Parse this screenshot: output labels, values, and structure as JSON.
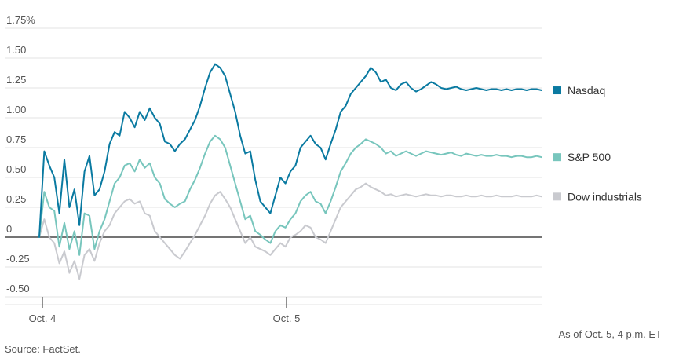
{
  "chart_data": {
    "type": "line",
    "title": "",
    "xlabel": "",
    "ylabel": "",
    "ylim": [
      -0.55,
      1.8
    ],
    "y_ticks": [
      {
        "value": 1.75,
        "label": "1.75%"
      },
      {
        "value": 1.5,
        "label": "1.50"
      },
      {
        "value": 1.25,
        "label": "1.25"
      },
      {
        "value": 1.0,
        "label": "1.00"
      },
      {
        "value": 0.75,
        "label": "0.75"
      },
      {
        "value": 0.5,
        "label": "0.50"
      },
      {
        "value": 0.25,
        "label": "0.25"
      },
      {
        "value": 0,
        "label": "0"
      },
      {
        "value": -0.25,
        "label": "-0.25"
      },
      {
        "value": -0.5,
        "label": "-0.50"
      }
    ],
    "x_ticks": [
      {
        "value": 0,
        "label": "Oct. 4"
      },
      {
        "value": 1,
        "label": "Oct. 5"
      }
    ],
    "xlim": [
      0,
      2
    ],
    "grid": true,
    "legend_position": "right",
    "series": [
      {
        "name": "Nasdaq",
        "color": "#0a7aa1",
        "x": [
          0,
          0.02,
          0.04,
          0.06,
          0.08,
          0.1,
          0.12,
          0.14,
          0.16,
          0.18,
          0.2,
          0.22,
          0.24,
          0.26,
          0.28,
          0.3,
          0.32,
          0.34,
          0.36,
          0.38,
          0.4,
          0.42,
          0.44,
          0.46,
          0.48,
          0.5,
          0.52,
          0.54,
          0.56,
          0.58,
          0.6,
          0.62,
          0.64,
          0.66,
          0.68,
          0.7,
          0.72,
          0.74,
          0.76,
          0.78,
          0.8,
          0.82,
          0.84,
          0.86,
          0.88,
          0.9,
          0.92,
          0.94,
          0.96,
          0.98,
          1.0,
          1.02,
          1.04,
          1.06,
          1.08,
          1.1,
          1.12,
          1.14,
          1.16,
          1.18,
          1.2,
          1.22,
          1.24,
          1.26,
          1.28,
          1.3,
          1.32,
          1.34,
          1.36,
          1.38,
          1.4,
          1.42,
          1.44,
          1.46,
          1.48,
          1.5,
          1.52,
          1.54,
          1.56,
          1.58,
          1.6,
          1.62,
          1.64,
          1.66,
          1.68,
          1.7,
          1.72,
          1.74,
          1.76,
          1.78,
          1.8,
          1.82,
          1.84,
          1.86,
          1.88,
          1.9,
          1.92,
          1.94,
          1.96,
          1.98,
          2.0
        ],
        "values": [
          0.0,
          0.72,
          0.6,
          0.5,
          0.2,
          0.65,
          0.25,
          0.4,
          0.1,
          0.55,
          0.68,
          0.35,
          0.4,
          0.55,
          0.78,
          0.88,
          0.85,
          1.05,
          1.0,
          0.92,
          1.05,
          0.98,
          1.08,
          1.0,
          0.95,
          0.8,
          0.78,
          0.72,
          0.78,
          0.82,
          0.9,
          0.98,
          1.1,
          1.25,
          1.38,
          1.45,
          1.42,
          1.35,
          1.2,
          1.05,
          0.85,
          0.7,
          0.72,
          0.48,
          0.3,
          0.25,
          0.2,
          0.35,
          0.5,
          0.45,
          0.55,
          0.6,
          0.75,
          0.8,
          0.85,
          0.78,
          0.75,
          0.65,
          0.78,
          0.9,
          1.05,
          1.1,
          1.2,
          1.25,
          1.3,
          1.35,
          1.42,
          1.38,
          1.3,
          1.32,
          1.25,
          1.23,
          1.28,
          1.3,
          1.25,
          1.22,
          1.24,
          1.27,
          1.3,
          1.28,
          1.25,
          1.24,
          1.25,
          1.26,
          1.24,
          1.23,
          1.24,
          1.25,
          1.24,
          1.23,
          1.24,
          1.24,
          1.23,
          1.24,
          1.23,
          1.24,
          1.24,
          1.23,
          1.24,
          1.24,
          1.23
        ]
      },
      {
        "name": "S&P 500",
        "color": "#78c6bd",
        "x": [
          0,
          0.02,
          0.04,
          0.06,
          0.08,
          0.1,
          0.12,
          0.14,
          0.16,
          0.18,
          0.2,
          0.22,
          0.24,
          0.26,
          0.28,
          0.3,
          0.32,
          0.34,
          0.36,
          0.38,
          0.4,
          0.42,
          0.44,
          0.46,
          0.48,
          0.5,
          0.52,
          0.54,
          0.56,
          0.58,
          0.6,
          0.62,
          0.64,
          0.66,
          0.68,
          0.7,
          0.72,
          0.74,
          0.76,
          0.78,
          0.8,
          0.82,
          0.84,
          0.86,
          0.88,
          0.9,
          0.92,
          0.94,
          0.96,
          0.98,
          1.0,
          1.02,
          1.04,
          1.06,
          1.08,
          1.1,
          1.12,
          1.14,
          1.16,
          1.18,
          1.2,
          1.22,
          1.24,
          1.26,
          1.28,
          1.3,
          1.32,
          1.34,
          1.36,
          1.38,
          1.4,
          1.42,
          1.44,
          1.46,
          1.48,
          1.5,
          1.52,
          1.54,
          1.56,
          1.58,
          1.6,
          1.62,
          1.64,
          1.66,
          1.68,
          1.7,
          1.72,
          1.74,
          1.76,
          1.78,
          1.8,
          1.82,
          1.84,
          1.86,
          1.88,
          1.9,
          1.92,
          1.94,
          1.96,
          1.98,
          2.0
        ],
        "values": [
          0.0,
          0.38,
          0.25,
          0.22,
          -0.08,
          0.12,
          -0.1,
          0.05,
          -0.15,
          0.2,
          0.18,
          -0.1,
          0.05,
          0.15,
          0.3,
          0.45,
          0.5,
          0.6,
          0.62,
          0.55,
          0.65,
          0.58,
          0.62,
          0.5,
          0.45,
          0.32,
          0.28,
          0.25,
          0.28,
          0.3,
          0.4,
          0.48,
          0.58,
          0.7,
          0.8,
          0.85,
          0.82,
          0.75,
          0.6,
          0.45,
          0.3,
          0.15,
          0.18,
          0.05,
          0.02,
          -0.02,
          -0.05,
          0.05,
          0.1,
          0.08,
          0.15,
          0.2,
          0.3,
          0.35,
          0.38,
          0.3,
          0.28,
          0.2,
          0.3,
          0.42,
          0.55,
          0.62,
          0.7,
          0.75,
          0.78,
          0.82,
          0.8,
          0.78,
          0.75,
          0.7,
          0.72,
          0.68,
          0.7,
          0.72,
          0.7,
          0.68,
          0.7,
          0.72,
          0.71,
          0.7,
          0.69,
          0.7,
          0.71,
          0.69,
          0.68,
          0.7,
          0.69,
          0.68,
          0.69,
          0.68,
          0.68,
          0.69,
          0.68,
          0.68,
          0.67,
          0.68,
          0.68,
          0.67,
          0.67,
          0.68,
          0.67
        ]
      },
      {
        "name": "Dow industrials",
        "color": "#c9cacf",
        "x": [
          0,
          0.02,
          0.04,
          0.06,
          0.08,
          0.1,
          0.12,
          0.14,
          0.16,
          0.18,
          0.2,
          0.22,
          0.24,
          0.26,
          0.28,
          0.3,
          0.32,
          0.34,
          0.36,
          0.38,
          0.4,
          0.42,
          0.44,
          0.46,
          0.48,
          0.5,
          0.52,
          0.54,
          0.56,
          0.58,
          0.6,
          0.62,
          0.64,
          0.66,
          0.68,
          0.7,
          0.72,
          0.74,
          0.76,
          0.78,
          0.8,
          0.82,
          0.84,
          0.86,
          0.88,
          0.9,
          0.92,
          0.94,
          0.96,
          0.98,
          1.0,
          1.02,
          1.04,
          1.06,
          1.08,
          1.1,
          1.12,
          1.14,
          1.16,
          1.18,
          1.2,
          1.22,
          1.24,
          1.26,
          1.28,
          1.3,
          1.32,
          1.34,
          1.36,
          1.38,
          1.4,
          1.42,
          1.44,
          1.46,
          1.48,
          1.5,
          1.52,
          1.54,
          1.56,
          1.58,
          1.6,
          1.62,
          1.64,
          1.66,
          1.68,
          1.7,
          1.72,
          1.74,
          1.76,
          1.78,
          1.8,
          1.82,
          1.84,
          1.86,
          1.88,
          1.9,
          1.92,
          1.94,
          1.96,
          1.98,
          2.0
        ],
        "values": [
          0.0,
          0.15,
          0.0,
          -0.05,
          -0.22,
          -0.12,
          -0.3,
          -0.2,
          -0.35,
          -0.15,
          -0.1,
          -0.2,
          -0.05,
          0.05,
          0.1,
          0.2,
          0.25,
          0.3,
          0.32,
          0.28,
          0.3,
          0.2,
          0.18,
          0.05,
          0.0,
          -0.05,
          -0.1,
          -0.15,
          -0.18,
          -0.12,
          -0.05,
          0.02,
          0.1,
          0.18,
          0.28,
          0.35,
          0.38,
          0.32,
          0.25,
          0.15,
          0.05,
          -0.05,
          0.0,
          -0.08,
          -0.1,
          -0.12,
          -0.15,
          -0.1,
          -0.05,
          -0.08,
          0.0,
          0.02,
          0.05,
          0.1,
          0.08,
          0.0,
          -0.02,
          -0.05,
          0.05,
          0.15,
          0.25,
          0.3,
          0.35,
          0.4,
          0.42,
          0.45,
          0.42,
          0.4,
          0.38,
          0.35,
          0.36,
          0.34,
          0.35,
          0.36,
          0.35,
          0.34,
          0.35,
          0.36,
          0.35,
          0.35,
          0.34,
          0.35,
          0.35,
          0.34,
          0.34,
          0.35,
          0.34,
          0.34,
          0.35,
          0.34,
          0.34,
          0.35,
          0.34,
          0.34,
          0.34,
          0.35,
          0.34,
          0.34,
          0.34,
          0.35,
          0.34
        ]
      }
    ]
  },
  "notes": {
    "as_of": "As of Oct. 5, 4 p.m. ET",
    "source": "Source: FactSet."
  }
}
